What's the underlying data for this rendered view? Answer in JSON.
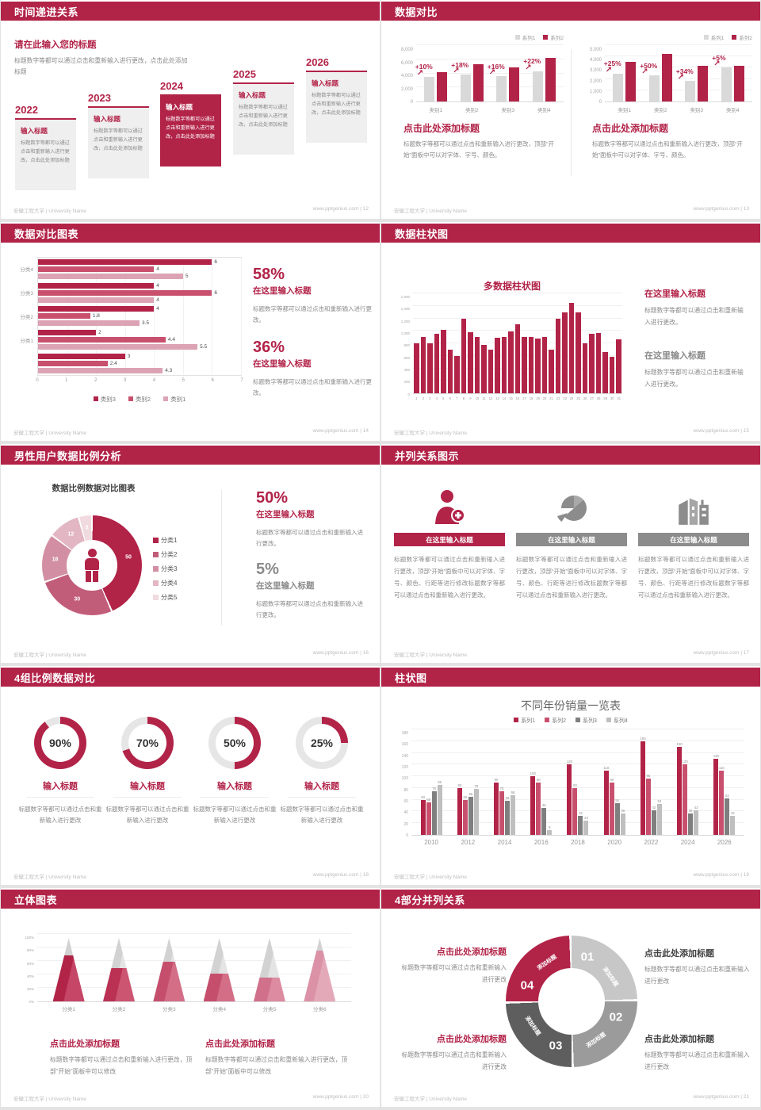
{
  "footer": {
    "left": "安徽工程大学 | University Name",
    "site": "www.pptgenius.com"
  },
  "colors": {
    "primary": "#B22348",
    "primary_mid": "#C8506E",
    "pink_light": "#DCA3B4",
    "bar_gray": "#D9D9D9",
    "gray_dark": "#7F7F7F",
    "gray_light": "#BFBFBF",
    "title_bar_gray": "#8C8C8C"
  },
  "slides": {
    "s12": {
      "header": "时间递进关系",
      "footer_right": "www.pptgenius.com | 12",
      "intro_title": "请在此输入您的标题",
      "intro_body": "标题数字等都可以通过点击和重新输入进行更改，点击此处添加标题",
      "years": [
        "2022",
        "2023",
        "2024",
        "2025",
        "2026"
      ],
      "highlight_year": "2024",
      "item_title": "输入标题",
      "item_body": "标题数字等都可以通过点击和重新输入进行更改，点击此处添加标题"
    },
    "s13": {
      "header": "数据对比",
      "footer_right": "www.pptgenius.com | 13",
      "panel_title": "点击此处添加标题",
      "panel_body": "标题数字等都可以通过点击和重新输入进行更改，顶部“开始”面板中可以对字体、字号、颜色。"
    },
    "s14": {
      "header": "数据对比图表",
      "footer_right": "www.pptgenius.com | 14",
      "stats": [
        {
          "pct": "58%",
          "title": "在这里输入标题",
          "body": "标题数字等都可以通过点击和重新输入进行更改。"
        },
        {
          "pct": "36%",
          "title": "在这里输入标题",
          "body": "标题数字等都可以通过点击和重新输入进行更改。"
        }
      ]
    },
    "s15": {
      "header": "数据柱状图",
      "footer_right": "www.pptgenius.com | 15",
      "blocks": [
        {
          "title": "在这里输入标题",
          "body": "标题数字等都可以通过点击和重新输入进行更改。"
        },
        {
          "title": "在这里输入标题",
          "body": "标题数字等都可以通过点击和重新输入进行更改。"
        }
      ]
    },
    "s16": {
      "header": "男性用户数据比例分析",
      "footer_right": "www.pptgenius.com | 16",
      "stats": [
        {
          "pct": "50%",
          "title": "在这里输入标题",
          "body": "标题数字等都可以通过点击和重新输入进行更改。"
        },
        {
          "pct": "5%",
          "title": "在这里输入标题",
          "body": "标题数字等都可以通过点击和重新输入进行更改。"
        }
      ]
    },
    "s17": {
      "header": "并列关系图示",
      "footer_right": "www.pptgenius.com | 17",
      "col_title": "在这里输入标题",
      "col_body": "标题数字等都可以通过点击和重新输入进行更改，顶部“开始”面板中可以对字体、字号、颜色、行距等进行修改标题数字等都可以通过点击和重新输入进行更改。"
    },
    "s18": {
      "header": "4组比例数据对比",
      "footer_right": "www.pptgenius.com | 18",
      "items": [
        "90%",
        "70%",
        "50%",
        "25%"
      ],
      "item_title": "输入标题",
      "item_body": "标题数字等都可以通过点击和重新输入进行更改"
    },
    "s19": {
      "header": "柱状图",
      "footer_right": "www.pptgenius.com | 19"
    },
    "s20": {
      "header": "立体图表",
      "footer_right": "www.pptgenius.com | 20",
      "block_title": "点击此处添加标题",
      "block_body": "标题数字等都可以通过点击和重新输入进行更改，顶部“开始”面板中可以修改"
    },
    "s21": {
      "header": "4部分并列关系",
      "footer_right": "www.pptgenius.com | 21",
      "numbers": [
        "01",
        "02",
        "03",
        "04"
      ],
      "seg_label": "添加标题",
      "block_title": "点击此处添加标题",
      "block_body": "标题数字等都可以通过点击和重新输入进行更改"
    }
  },
  "chart_data": [
    {
      "type": "bar",
      "slide": "13-left",
      "categories": [
        "类别1",
        "类别2",
        "类别3",
        "类别4"
      ],
      "series": [
        {
          "name": "系列1",
          "color": "#D9D9D9",
          "values": [
            3500,
            3800,
            3600,
            4300
          ]
        },
        {
          "name": "系列2",
          "color": "#B22348",
          "values": [
            4200,
            5300,
            4800,
            6200
          ]
        }
      ],
      "growth_labels": [
        "+10%",
        "+18%",
        "+16%",
        "+22%"
      ],
      "ylim": [
        0,
        8000
      ],
      "yticks": [
        "0",
        "2,000",
        "4,000",
        "6,000",
        "8,000"
      ]
    },
    {
      "type": "bar",
      "slide": "13-right",
      "categories": [
        "类别1",
        "类别2",
        "类别3",
        "类别4"
      ],
      "series": [
        {
          "name": "系列1",
          "color": "#D9D9D9",
          "values": [
            2500,
            2300,
            1800,
            3000
          ]
        },
        {
          "name": "系列2",
          "color": "#B22348",
          "values": [
            3500,
            4200,
            3200,
            3200
          ]
        }
      ],
      "growth_labels": [
        "+25%",
        "+50%",
        "+34%",
        "+5%"
      ],
      "ylim": [
        0,
        5000
      ],
      "yticks": [
        "0",
        "1,000",
        "2,000",
        "3,000",
        "4,000",
        "5,000"
      ]
    },
    {
      "type": "bar-horizontal",
      "slide": "14",
      "groups": [
        "分类4",
        "分类3",
        "分类2",
        "分类1",
        ""
      ],
      "series": [
        {
          "name": "类别3",
          "color": "#B22348",
          "values": [
            6,
            4,
            4,
            2,
            3
          ]
        },
        {
          "name": "类别2",
          "color": "#C8506E",
          "values": [
            4,
            6,
            1.8,
            4.4,
            2.4
          ]
        },
        {
          "name": "类别1",
          "color": "#DCA3B4",
          "values": [
            5,
            4,
            3.5,
            5.5,
            4.3
          ]
        }
      ],
      "xlim": [
        0,
        7
      ],
      "xticks": [
        "0",
        "1",
        "2",
        "3",
        "4",
        "5",
        "6",
        "7"
      ]
    },
    {
      "type": "bar",
      "slide": "15",
      "title": "多数据柱状图",
      "color": "#B22348",
      "categories": [
        "1",
        "2",
        "3",
        "4",
        "5",
        "6",
        "7",
        "8",
        "9",
        "10",
        "11",
        "12",
        "13",
        "14",
        "15",
        "16",
        "17",
        "18",
        "19",
        "20",
        "21",
        "22",
        "23",
        "24",
        "25",
        "26",
        "27",
        "28",
        "29",
        "30",
        "31"
      ],
      "values": [
        800,
        900,
        800,
        950,
        1020,
        700,
        600,
        1200,
        980,
        900,
        780,
        700,
        890,
        900,
        990,
        1100,
        900,
        900,
        880,
        900,
        700,
        1200,
        1300,
        1450,
        1300,
        800,
        950,
        960,
        660,
        590,
        870
      ],
      "ylim": [
        0,
        1600
      ],
      "yticks": [
        "0",
        "200",
        "400",
        "600",
        "800",
        "1,000",
        "1,200",
        "1,400",
        "1,600"
      ]
    },
    {
      "type": "pie",
      "slide": "16",
      "title": "数据比例数据对比图表",
      "labels": [
        "分类1",
        "分类2",
        "分类3",
        "分类4",
        "分类5"
      ],
      "values": [
        50,
        30,
        18,
        12,
        5
      ],
      "colors": [
        "#B22348",
        "#C25D79",
        "#D28FA3",
        "#E2B6C2",
        "#F0DAE0"
      ]
    },
    {
      "type": "progress-rings",
      "slide": "18",
      "values": [
        90,
        70,
        50,
        25
      ],
      "color": "#B22348",
      "track": "#E6E6E6"
    },
    {
      "type": "bar",
      "slide": "19",
      "title": "不同年份销量一览表",
      "categories": [
        "2010",
        "2012",
        "2014",
        "2016",
        "2018",
        "2020",
        "2022",
        "2024",
        "2026"
      ],
      "series": [
        {
          "name": "系列1",
          "color": "#B22348",
          "values": [
            60,
            80,
            90,
            100,
            120,
            110,
            160,
            150,
            130
          ]
        },
        {
          "name": "系列2",
          "color": "#C8506E",
          "values": [
            55,
            60,
            75,
            90,
            80,
            90,
            96,
            120,
            110
          ]
        },
        {
          "name": "系列3",
          "color": "#7F7F7F",
          "values": [
            75,
            65,
            58,
            46,
            32,
            54,
            42,
            36,
            62
          ]
        },
        {
          "name": "系列4",
          "color": "#BFBFBF",
          "values": [
            85,
            78,
            68,
            8,
            24,
            36,
            53,
            42,
            32
          ]
        }
      ],
      "ylim": [
        0,
        180
      ],
      "yticks": [
        "0",
        "20",
        "40",
        "60",
        "80",
        "100",
        "120",
        "140",
        "160",
        "180"
      ]
    },
    {
      "type": "cone",
      "slide": "20",
      "categories": [
        "分类1",
        "分类2",
        "分类3",
        "分类4",
        "分类5",
        "分类6"
      ],
      "values": [
        72,
        52,
        62,
        44,
        37,
        80
      ],
      "colors": [
        "#B22348",
        "#BA3154",
        "#C54E6C",
        "#C54E6C",
        "#D0708A",
        "#DB92A6"
      ],
      "colors_light": [
        "#C54667",
        "#CC5572",
        "#D46E87",
        "#D46E87",
        "#DC8BA0",
        "#E4A9B9"
      ],
      "yticks": [
        "0%",
        "20%",
        "40%",
        "60%",
        "80%",
        "100%"
      ]
    }
  ]
}
